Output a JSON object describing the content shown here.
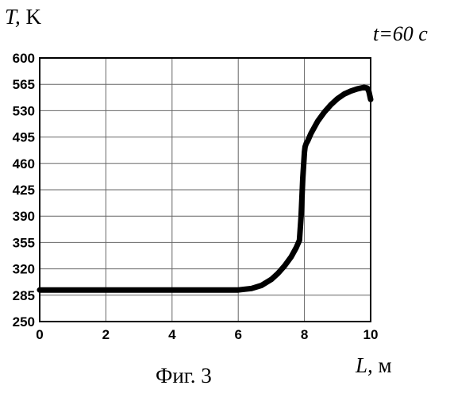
{
  "chart_data": {
    "type": "line",
    "ylabel": {
      "var": "T,",
      "unit": "K"
    },
    "xlabel": {
      "var": "L,",
      "unit": "м"
    },
    "annotation": "t=60 c",
    "caption": "Фиг. 3",
    "xlim": [
      0,
      10
    ],
    "ylim": [
      250,
      600
    ],
    "xticks": [
      0,
      2,
      4,
      6,
      8,
      10
    ],
    "yticks": [
      250,
      285,
      320,
      355,
      390,
      425,
      460,
      495,
      530,
      565,
      600
    ],
    "grid": true,
    "series": [
      {
        "color": "#000000",
        "x": [
          0,
          1,
          2,
          3,
          4,
          5,
          6,
          6.4,
          6.7,
          7.0,
          7.2,
          7.4,
          7.6,
          7.75,
          7.85,
          7.9,
          7.95,
          8.0,
          8.02,
          8.05,
          8.1,
          8.2,
          8.4,
          8.6,
          8.8,
          9.0,
          9.2,
          9.4,
          9.6,
          9.8,
          9.9,
          9.95,
          10.0
        ],
        "y": [
          292,
          292,
          292,
          292,
          292,
          292,
          292,
          294,
          298,
          306,
          314,
          324,
          336,
          348,
          358,
          390,
          440,
          475,
          482,
          486,
          490,
          500,
          516,
          528,
          538,
          546,
          552,
          556,
          559,
          561,
          560,
          555,
          545
        ]
      }
    ]
  }
}
